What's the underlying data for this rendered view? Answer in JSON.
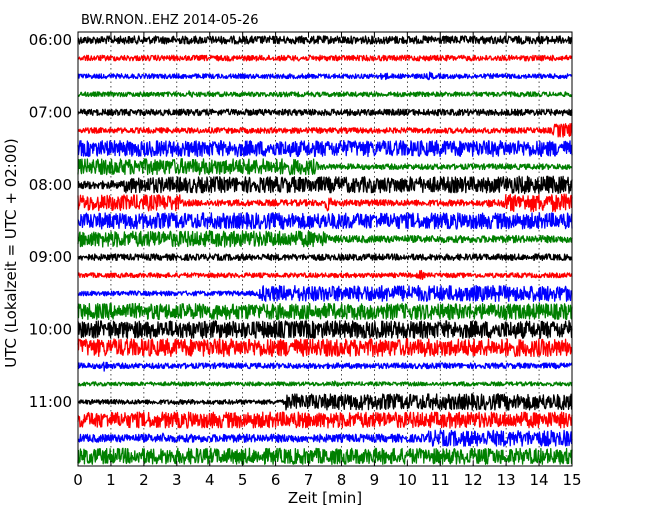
{
  "chart_data": {
    "type": "line",
    "title": "BW.RNON..EHZ 2014-05-26",
    "xlabel": "Zeit  [min]",
    "ylabel": "UTC (Lokalzeit = UTC + 02:00)",
    "xlim": [
      0,
      15
    ],
    "x_ticks": [
      "0",
      "1",
      "2",
      "3",
      "4",
      "5",
      "6",
      "7",
      "8",
      "9",
      "10",
      "11",
      "12",
      "13",
      "14",
      "15"
    ],
    "y_ticks": [
      {
        "label": "06:00",
        "row": 0
      },
      {
        "label": "07:00",
        "row": 4
      },
      {
        "label": "08:00",
        "row": 8
      },
      {
        "label": "09:00",
        "row": 12
      },
      {
        "label": "10:00",
        "row": 16
      },
      {
        "label": "11:00",
        "row": 20
      }
    ],
    "grid": true,
    "trace_colors": [
      "#000000",
      "#ff0000",
      "#0000ff",
      "#008000"
    ],
    "traces": [
      {
        "start": "06:00",
        "segments": [
          [
            0,
            15,
            0.5
          ]
        ],
        "spikes": []
      },
      {
        "start": "06:15",
        "segments": [
          [
            0,
            15,
            0.35
          ]
        ],
        "spikes": []
      },
      {
        "start": "06:30",
        "segments": [
          [
            0,
            15,
            0.3
          ]
        ],
        "spikes": [
          [
            9.3,
            0.7
          ],
          [
            10.7,
            0.6
          ]
        ]
      },
      {
        "start": "06:45",
        "segments": [
          [
            0,
            15,
            0.3
          ]
        ],
        "spikes": [
          [
            3.4,
            0.5
          ]
        ]
      },
      {
        "start": "07:00",
        "segments": [
          [
            0,
            15,
            0.4
          ]
        ],
        "spikes": []
      },
      {
        "start": "07:15",
        "segments": [
          [
            0,
            14.5,
            0.35
          ],
          [
            14.5,
            15,
            0.9
          ]
        ],
        "spikes": [
          [
            14.5,
            0.9
          ]
        ]
      },
      {
        "start": "07:30",
        "segments": [
          [
            0,
            15,
            1.0
          ]
        ],
        "spikes": []
      },
      {
        "start": "07:45",
        "segments": [
          [
            0,
            7.2,
            1.0
          ],
          [
            7.2,
            15,
            0.35
          ]
        ],
        "spikes": [
          [
            7.2,
            0.8
          ]
        ]
      },
      {
        "start": "08:00",
        "segments": [
          [
            0,
            1.4,
            0.5
          ],
          [
            1.4,
            12.8,
            1.0
          ],
          [
            12.8,
            15,
            1.1
          ]
        ],
        "spikes": [
          [
            7.6,
            1.0
          ]
        ]
      },
      {
        "start": "08:15",
        "segments": [
          [
            0,
            3.1,
            1.0
          ],
          [
            3.1,
            12.9,
            0.4
          ],
          [
            12.9,
            15,
            1.1
          ]
        ],
        "spikes": [
          [
            7.6,
            1.2
          ],
          [
            12.5,
            0.6
          ]
        ]
      },
      {
        "start": "08:30",
        "segments": [
          [
            0,
            15,
            1.0
          ]
        ],
        "spikes": []
      },
      {
        "start": "08:45",
        "segments": [
          [
            0,
            7.5,
            1.0
          ],
          [
            7.5,
            15,
            0.45
          ]
        ],
        "spikes": [
          [
            7.5,
            0.8
          ]
        ]
      },
      {
        "start": "09:00",
        "segments": [
          [
            0,
            15,
            0.4
          ]
        ],
        "spikes": []
      },
      {
        "start": "09:15",
        "segments": [
          [
            0,
            15,
            0.3
          ]
        ],
        "spikes": [
          [
            10.4,
            0.7
          ]
        ]
      },
      {
        "start": "09:30",
        "segments": [
          [
            0,
            5.5,
            0.3
          ],
          [
            5.5,
            15,
            1.0
          ]
        ],
        "spikes": []
      },
      {
        "start": "09:45",
        "segments": [
          [
            0,
            15,
            1.0
          ]
        ],
        "spikes": []
      },
      {
        "start": "10:00",
        "segments": [
          [
            0,
            15,
            1.1
          ]
        ],
        "spikes": []
      },
      {
        "start": "10:15",
        "segments": [
          [
            0,
            15,
            1.1
          ]
        ],
        "spikes": []
      },
      {
        "start": "10:30",
        "segments": [
          [
            0,
            15,
            0.35
          ]
        ],
        "spikes": [
          [
            0.8,
            0.9
          ]
        ]
      },
      {
        "start": "10:45",
        "segments": [
          [
            0,
            15,
            0.25
          ]
        ],
        "spikes": [
          [
            7.8,
            0.4
          ],
          [
            11.8,
            0.4
          ]
        ]
      },
      {
        "start": "11:00",
        "segments": [
          [
            0,
            6.3,
            0.3
          ],
          [
            6.3,
            15,
            1.0
          ]
        ],
        "spikes": []
      },
      {
        "start": "11:15",
        "segments": [
          [
            0,
            15,
            1.0
          ]
        ],
        "spikes": []
      },
      {
        "start": "11:30",
        "segments": [
          [
            0,
            10.6,
            0.5
          ],
          [
            10.6,
            15,
            1.0
          ]
        ],
        "spikes": [
          [
            2.6,
            0.7
          ]
        ]
      },
      {
        "start": "11:45",
        "segments": [
          [
            0,
            15,
            1.0
          ]
        ],
        "spikes": []
      }
    ]
  }
}
